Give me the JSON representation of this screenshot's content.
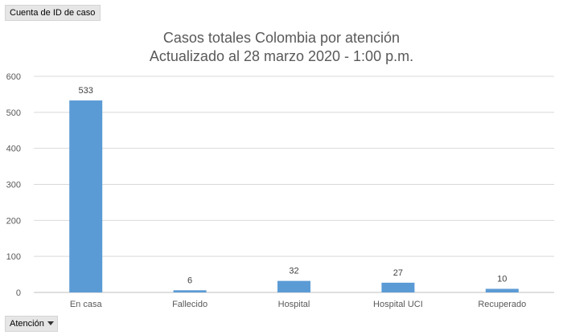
{
  "pivot": {
    "value_field": "Cuenta de ID de caso",
    "axis_field": "Atención"
  },
  "chart_data": {
    "type": "bar",
    "title": "Casos totales Colombia por atención",
    "subtitle": "Actualizado al 28 marzo 2020 - 1:00 p.m.",
    "categories": [
      "En casa",
      "Fallecido",
      "Hospital",
      "Hospital UCI",
      "Recuperado"
    ],
    "values": [
      533,
      6,
      32,
      27,
      10
    ],
    "data_labels": [
      "533",
      "6",
      "32",
      "27",
      "10"
    ],
    "ylim": [
      0,
      600
    ],
    "yticks": [
      0,
      100,
      200,
      300,
      400,
      500,
      600
    ],
    "grid": true,
    "legend": "none",
    "bar_color": "#5b9bd5"
  }
}
